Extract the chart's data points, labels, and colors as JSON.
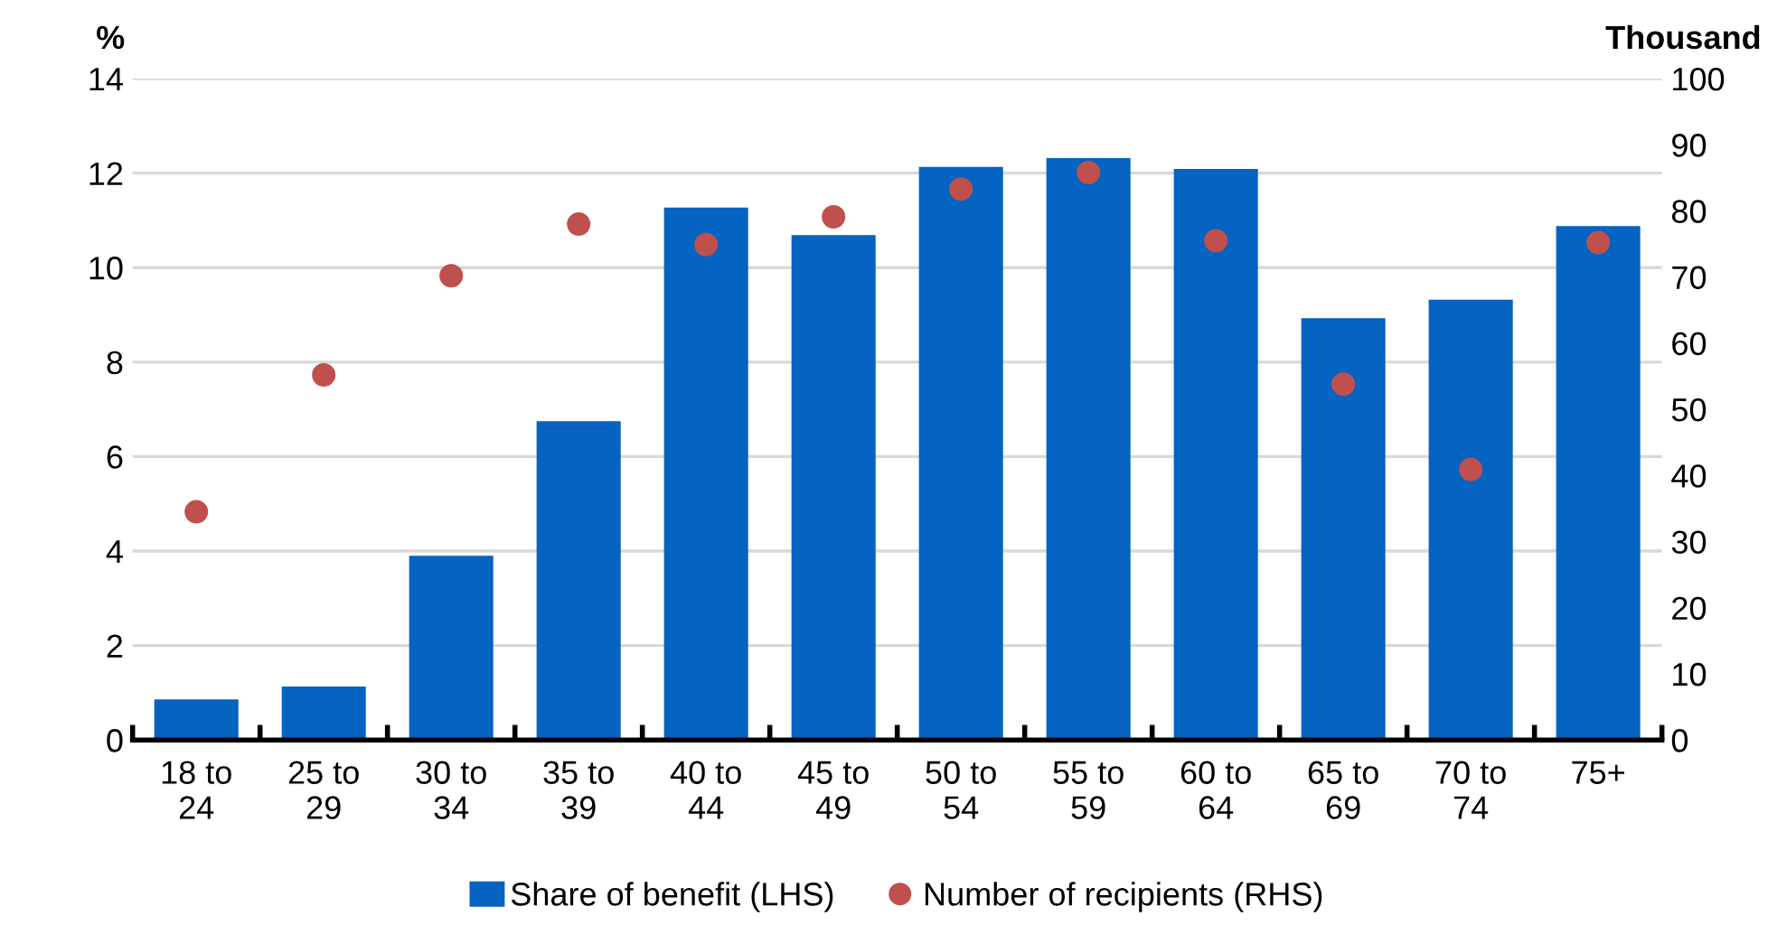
{
  "chart_data": {
    "type": "bar",
    "categories": [
      "18 to\n24",
      "25 to\n29",
      "30 to\n34",
      "35 to\n39",
      "40 to\n44",
      "45 to\n49",
      "50 to\n54",
      "55 to\n59",
      "60 to\n64",
      "65 to\n69",
      "70 to\n74",
      "75+"
    ],
    "series": [
      {
        "name": "Share of benefit (LHS)",
        "color": "#0563c1",
        "values": [
          0.86,
          1.13,
          3.9,
          6.75,
          11.27,
          10.69,
          12.13,
          12.32,
          12.09,
          8.93,
          9.32,
          10.88
        ]
      },
      {
        "name": "Number of recipients (RHS)",
        "type": "scatter",
        "axis": "y2",
        "color": "#c0504d",
        "values": [
          34.5,
          55.2,
          70.2,
          78,
          74.9,
          79.1,
          83.3,
          85.8,
          75.5,
          53.8,
          40.9,
          75.2
        ]
      }
    ],
    "ylabel": "%",
    "y2label": "Thousand",
    "ylim": [
      0,
      14
    ],
    "yticks": [
      0,
      2,
      4,
      6,
      8,
      10,
      12,
      14
    ],
    "y2lim": [
      0,
      100
    ],
    "y2ticks": [
      0,
      10,
      20,
      30,
      40,
      50,
      60,
      70,
      80,
      90,
      100
    ],
    "grid": "y",
    "legend": "bottom",
    "marker": "circle"
  }
}
